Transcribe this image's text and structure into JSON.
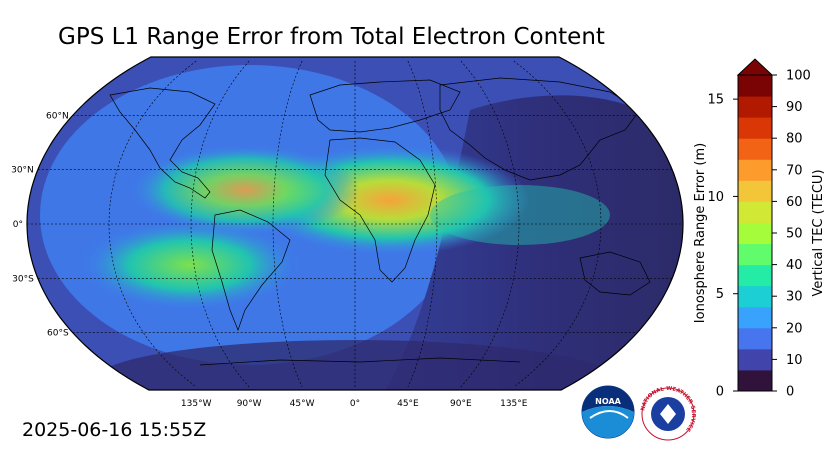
{
  "title": "GPS L1 Range Error from Total Electron Content",
  "timestamp": "2025-06-16 15:55Z",
  "map": {
    "projection": "robinson",
    "latitude_labels": [
      "60°N",
      "30°N",
      "0°",
      "30°S",
      "60°S"
    ],
    "latitude_values": [
      60,
      30,
      0,
      -30,
      -60
    ],
    "longitude_labels": [
      "135°W",
      "90°W",
      "45°W",
      "0°",
      "45°E",
      "90°E",
      "135°E"
    ],
    "longitude_values": [
      -135,
      -90,
      -45,
      0,
      45,
      90,
      135
    ],
    "gridlines": "dashed",
    "ocean_colors": [
      "#2f2a6e",
      "#3c4fb4",
      "#3f7ef0"
    ],
    "peak_colors": [
      "#21c4b0",
      "#7de04e",
      "#f7a23a"
    ]
  },
  "colorbar": {
    "label_left": "Ionosphere Range Error (m)",
    "label_right": "Vertical TEC (TECU)",
    "left_ticks": [
      "0",
      "5",
      "10",
      "15"
    ],
    "left_values": [
      0,
      5,
      10,
      15
    ],
    "right_ticks": [
      "0",
      "10",
      "20",
      "30",
      "40",
      "50",
      "60",
      "70",
      "80",
      "90",
      "100"
    ],
    "right_values": [
      0,
      10,
      20,
      30,
      40,
      50,
      60,
      70,
      80,
      90,
      100
    ],
    "tecu_range": [
      0,
      100
    ],
    "range_error_max_m": 16.24,
    "extend": "max",
    "colors": [
      "#30123b",
      "#4145ab",
      "#4675ed",
      "#39a2fc",
      "#1bcfd4",
      "#24eca6",
      "#61fc6c",
      "#a4fc3b",
      "#d1e834",
      "#f3c63a",
      "#fe9b2d",
      "#f36315",
      "#d93806",
      "#b11901",
      "#7a0403"
    ]
  },
  "logos": {
    "noaa": "NOAA",
    "nws": "NATIONAL WEATHER SERVICE"
  }
}
